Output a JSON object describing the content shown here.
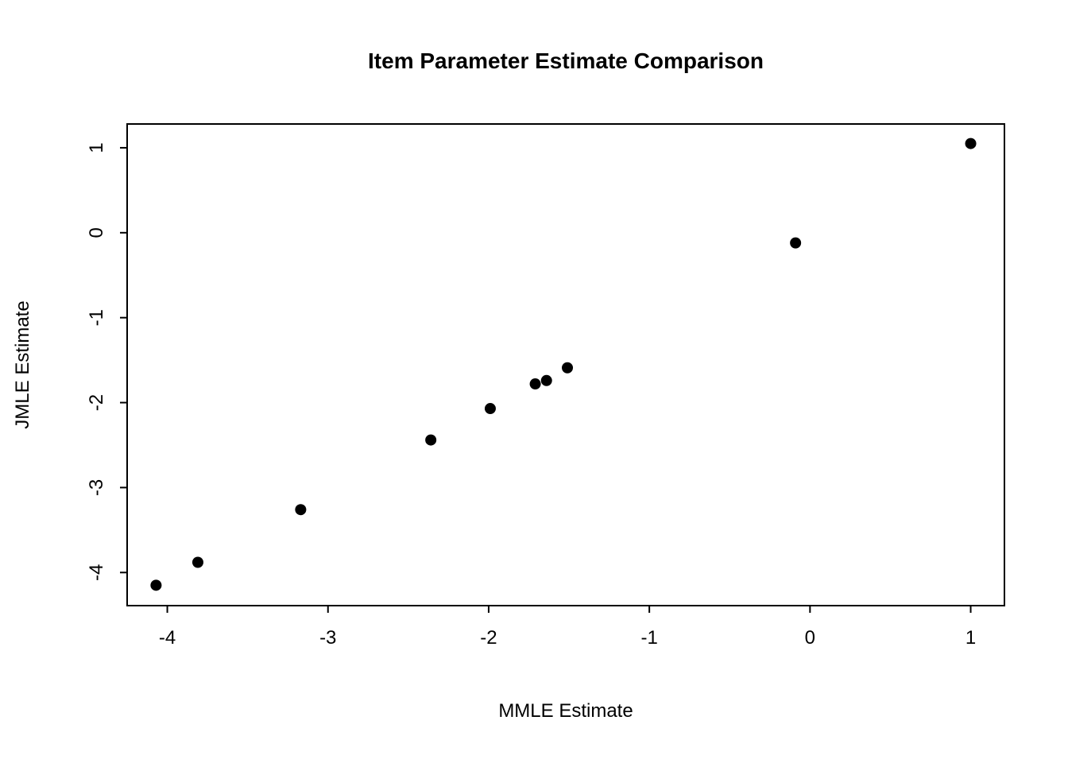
{
  "chart_data": {
    "type": "scatter",
    "title": "Item Parameter Estimate Comparison",
    "xlabel": "MMLE Estimate",
    "ylabel": "JMLE Estimate",
    "xlim": [
      -4.25,
      1.21
    ],
    "ylim": [
      -4.39,
      1.28
    ],
    "x_ticks": [
      -4,
      -3,
      -2,
      -1,
      0,
      1
    ],
    "y_ticks": [
      -4,
      -3,
      -2,
      -1,
      0,
      1
    ],
    "grid": false,
    "legend": false,
    "point_color": "#000000",
    "axis_color": "#000000",
    "background": "#ffffff",
    "points": [
      {
        "x": -4.07,
        "y": -4.15
      },
      {
        "x": -3.81,
        "y": -3.88
      },
      {
        "x": -3.17,
        "y": -3.26
      },
      {
        "x": -2.36,
        "y": -2.44
      },
      {
        "x": -1.99,
        "y": -2.07
      },
      {
        "x": -1.71,
        "y": -1.78
      },
      {
        "x": -1.64,
        "y": -1.74
      },
      {
        "x": -1.51,
        "y": -1.59
      },
      {
        "x": -0.09,
        "y": -0.12
      },
      {
        "x": 1.0,
        "y": 1.05
      }
    ]
  }
}
